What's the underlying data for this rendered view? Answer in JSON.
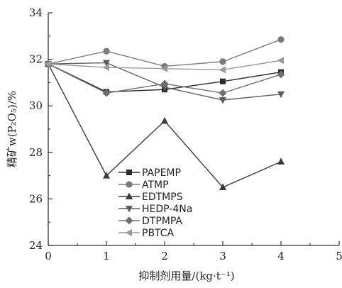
{
  "chart_data": {
    "type": "line",
    "x": [
      0,
      1,
      2,
      3,
      4
    ],
    "xlim": [
      0,
      5
    ],
    "ylim": [
      24,
      34
    ],
    "x_ticks": [
      "0",
      "1",
      "2",
      "3",
      "4",
      "5"
    ],
    "y_ticks": [
      "24",
      "26",
      "28",
      "30",
      "32",
      "34"
    ],
    "xlabel": "抑制剂用量/(kg·t⁻¹)",
    "ylabel": "精矿w(P₂O₅)/%",
    "legend_position": "lower-left",
    "grid": false,
    "series": [
      {
        "name": "PAPEMP",
        "marker": "square",
        "color": "#2b2b2b",
        "values": [
          31.8,
          30.6,
          30.7,
          31.05,
          31.45
        ]
      },
      {
        "name": "ATMP",
        "marker": "circle",
        "color": "#7a7a7a",
        "values": [
          31.8,
          32.35,
          31.7,
          31.9,
          32.85
        ]
      },
      {
        "name": "EDTMPS",
        "marker": "triangle-up",
        "color": "#3a3a3a",
        "values": [
          31.8,
          27.0,
          29.35,
          26.5,
          27.6
        ]
      },
      {
        "name": "HEDP-4Na",
        "marker": "triangle-down",
        "color": "#5e5e5e",
        "values": [
          31.8,
          31.85,
          30.8,
          30.25,
          30.5
        ]
      },
      {
        "name": "DTPMPA",
        "marker": "diamond",
        "color": "#6f6f6f",
        "values": [
          31.8,
          30.55,
          30.95,
          30.55,
          31.35
        ]
      },
      {
        "name": "PBTCA",
        "marker": "triangle-left",
        "color": "#9a9a9a",
        "values": [
          31.8,
          31.65,
          31.6,
          31.55,
          31.95
        ]
      }
    ]
  }
}
